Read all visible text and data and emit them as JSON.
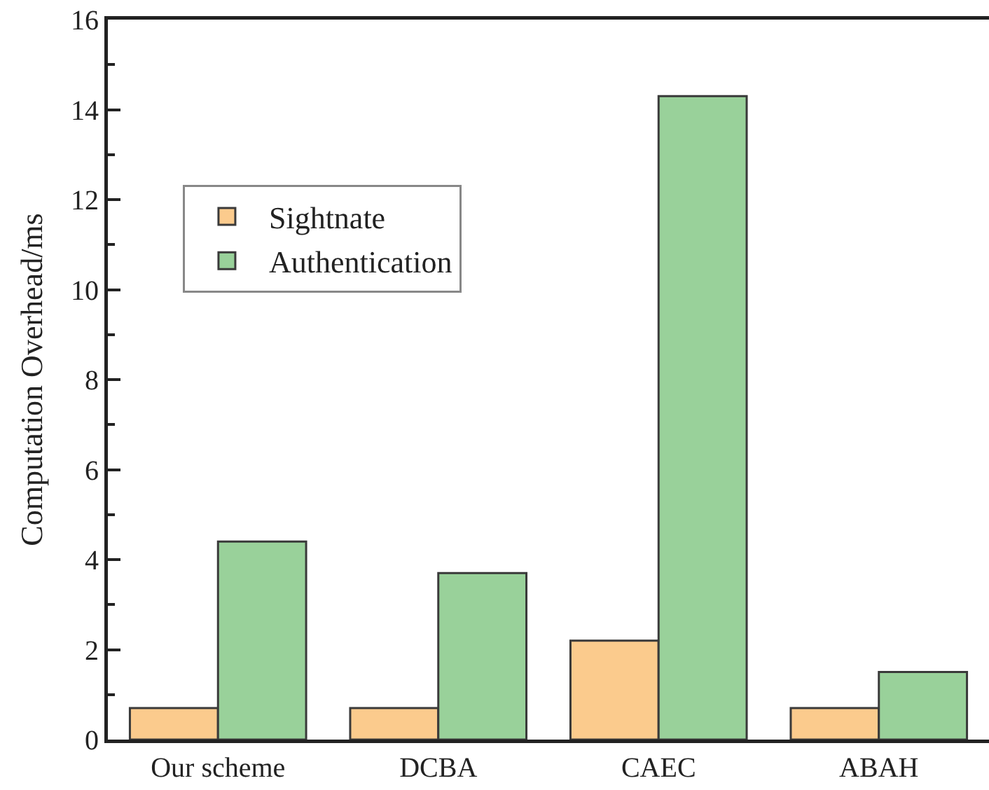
{
  "chart_data": {
    "type": "bar",
    "ylabel": "Computation Overhead/ms",
    "categories": [
      "Our scheme",
      "DCBA",
      "CAEC",
      "ABAH"
    ],
    "series": [
      {
        "name": "Sightnate",
        "color": "#fbcb8d",
        "values": [
          0.7,
          0.7,
          2.2,
          0.7
        ]
      },
      {
        "name": "Authentication",
        "color": "#99d19a",
        "values": [
          4.4,
          3.7,
          14.3,
          1.5
        ]
      }
    ],
    "ylim": [
      0,
      16
    ],
    "yticks": [
      0,
      {
        "value": 1,
        "label": null
      },
      2,
      {
        "value": 3,
        "label": null
      },
      4,
      {
        "value": 5,
        "label": null
      },
      6,
      {
        "value": 7,
        "label": null
      },
      8,
      {
        "value": 9,
        "label": null
      },
      10,
      {
        "value": 11,
        "label": null
      },
      12,
      {
        "value": 13,
        "label": null
      },
      14,
      {
        "value": 15,
        "label": null
      },
      16
    ],
    "legend": "top left"
  }
}
